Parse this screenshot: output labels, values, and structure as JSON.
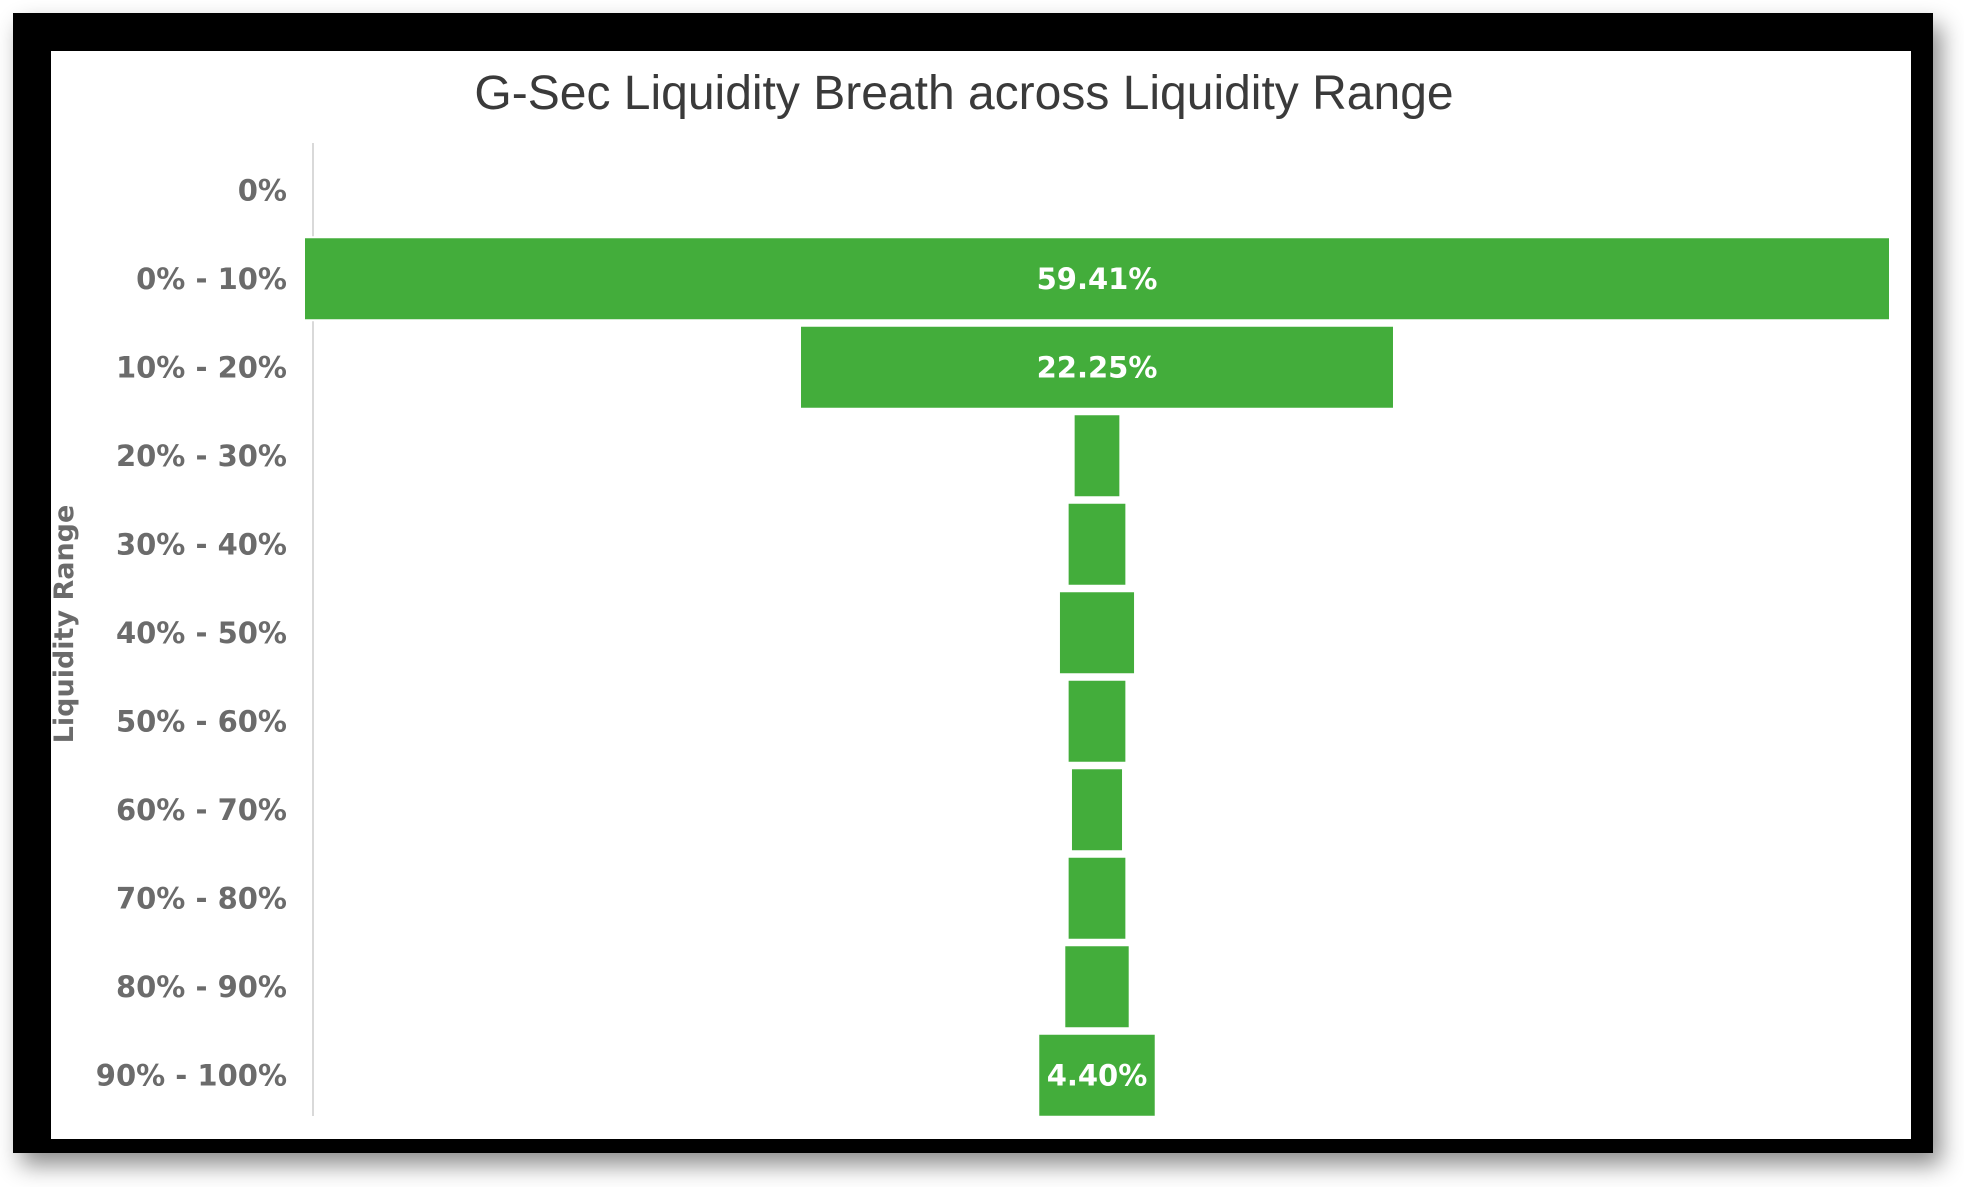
{
  "chart_data": {
    "type": "bar",
    "orientation": "horizontal-centered",
    "title": "G-Sec Liquidity Breath across Liquidity Range",
    "ylabel": "Liquidity Range",
    "xlabel": "",
    "categories": [
      "0%",
      "0% - 10%",
      "10% - 20%",
      "20% - 30%",
      "30% - 40%",
      "40% - 50%",
      "50% - 60%",
      "60% - 70%",
      "70% - 80%",
      "80% - 90%",
      "90% - 100%"
    ],
    "values": [
      0,
      59.41,
      22.25,
      1.75,
      2.2,
      2.85,
      2.2,
      1.95,
      2.2,
      2.45,
      4.4
    ],
    "data_labels": [
      "",
      "59.41%",
      "22.25%",
      "",
      "",
      "",
      "",
      "",
      "",
      "",
      "4.40%"
    ],
    "xlim": [
      0,
      59.41
    ],
    "bar_color": "#43ad3b",
    "grid": false,
    "legend": "none"
  }
}
